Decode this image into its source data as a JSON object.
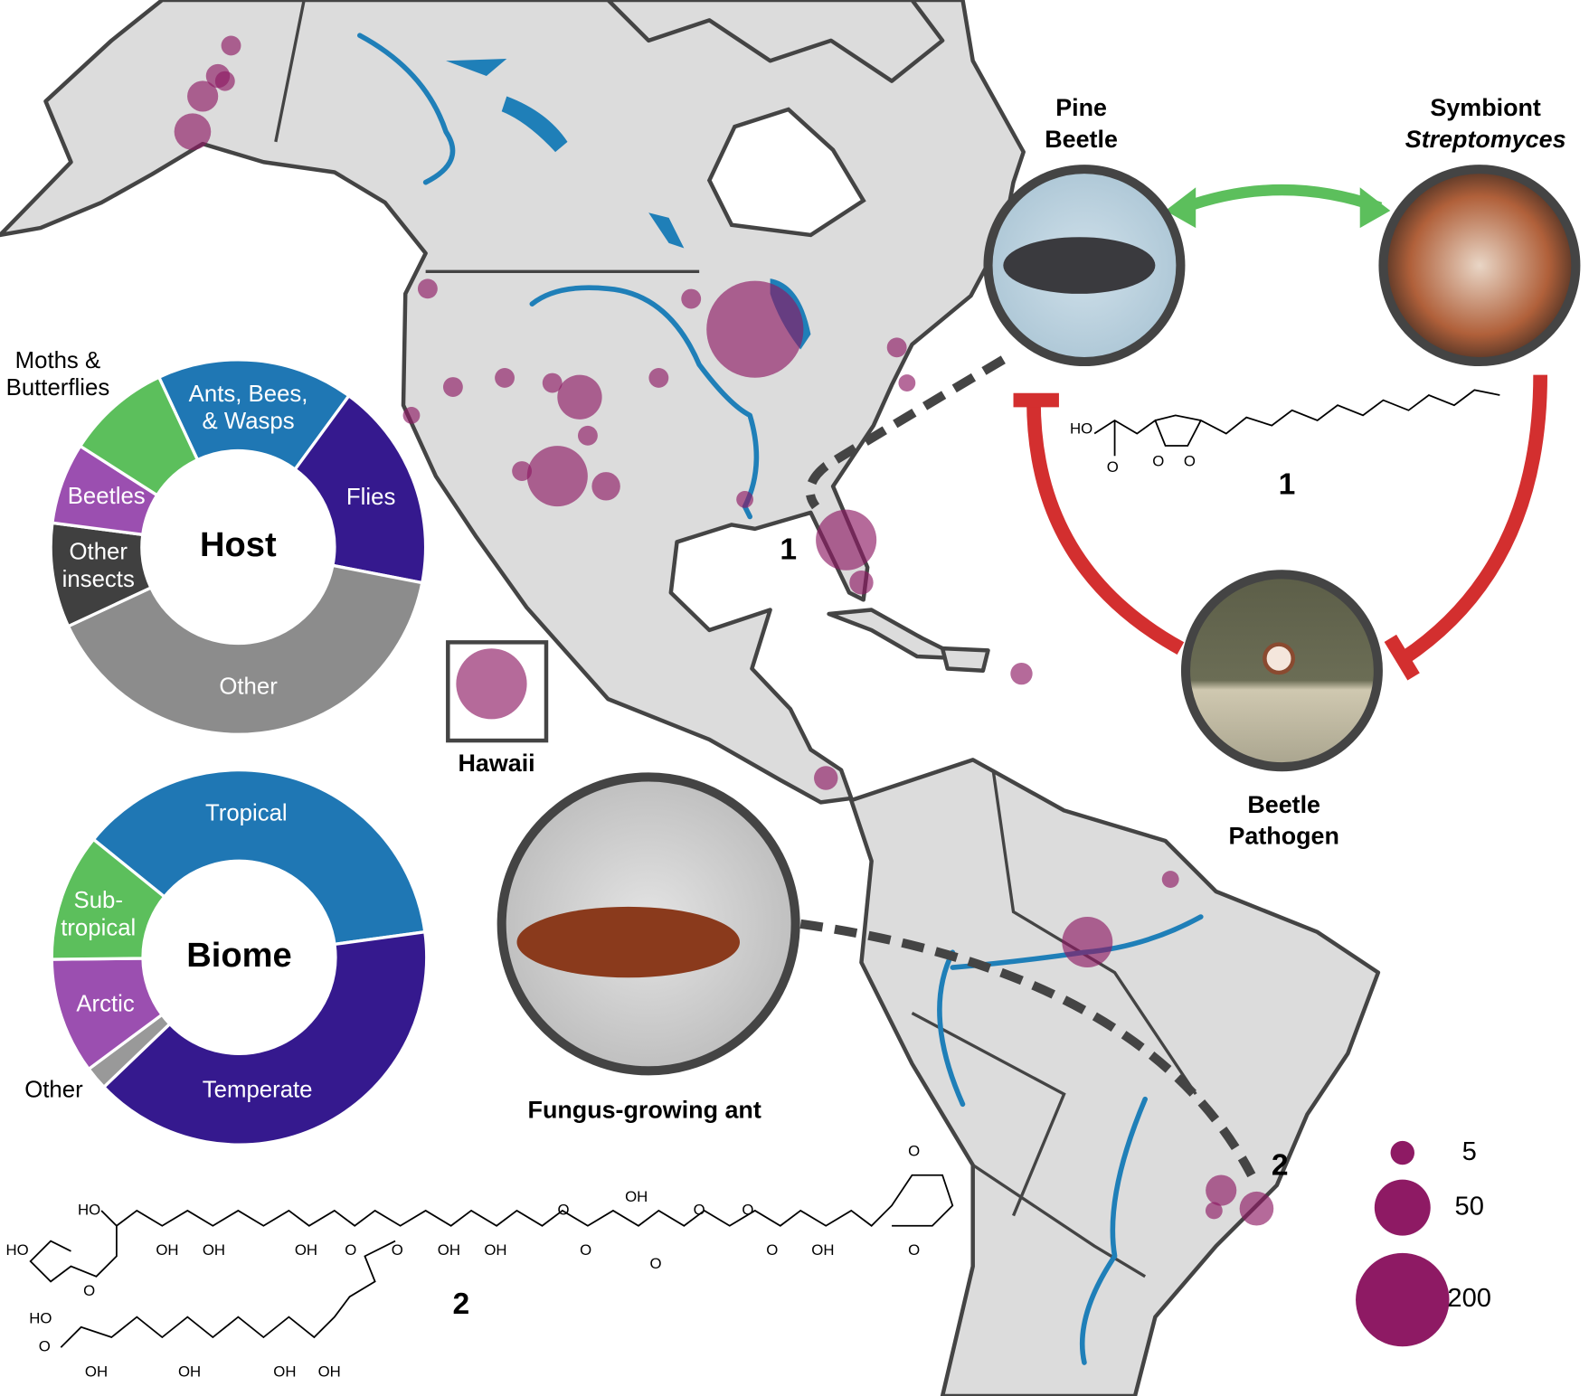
{
  "chart_data": [
    {
      "type": "donut",
      "center_label": "Host",
      "categories": [
        [
          "Ants, Bees,",
          "& Wasps"
        ],
        [
          "Flies"
        ],
        [
          "Other"
        ],
        [
          "Other",
          "insects"
        ],
        [
          "Beetles"
        ],
        [
          "Moths &",
          "Butterflies"
        ]
      ],
      "values": [
        17,
        18,
        40,
        9,
        7,
        9
      ],
      "colors": [
        "#1f77b4",
        "#35198e",
        "#8c8c8c",
        "#404040",
        "#9b4fb0",
        "#5cbf5c"
      ]
    },
    {
      "type": "donut",
      "center_label": "Biome",
      "categories": [
        [
          "Tropical"
        ],
        [
          "Temperate"
        ],
        [
          "Other"
        ],
        [
          "Arctic"
        ],
        [
          "Sub-",
          "tropical"
        ]
      ],
      "values": [
        37,
        40,
        2,
        10,
        11
      ],
      "colors": [
        "#1f77b4",
        "#35198e",
        "#999999",
        "#9b4fb0",
        "#5cbf5c"
      ]
    }
  ],
  "map": {
    "bubble_color": "#8e1a64",
    "bubble_sizes": [
      3,
      5,
      3,
      10,
      16,
      3,
      220,
      3,
      27,
      62,
      3,
      8,
      3,
      3,
      3,
      3,
      3,
      2,
      3,
      2,
      2,
      62,
      5,
      4,
      5,
      94,
      2,
      38,
      10,
      13,
      2
    ],
    "size_legend": [
      5,
      50,
      200
    ]
  },
  "labels": {
    "pine_beetle": [
      "Pine",
      "Beetle"
    ],
    "symbiont": [
      "Symbiont",
      "Streptomyces"
    ],
    "pathogen": [
      "Beetle",
      "Pathogen"
    ],
    "hawaii": "Hawaii",
    "ant": "Fungus-growing ant",
    "compound_1": "1",
    "compound_2": "2"
  },
  "molecule_1_atoms": [
    "HO",
    "O",
    "O",
    "O"
  ],
  "molecule_2_atoms": [
    "HO",
    "HO",
    "O",
    "HO",
    "O",
    "OH",
    "OH",
    "OH",
    "OH",
    "OH",
    "OH",
    "OH",
    "O",
    "O",
    "OH",
    "OH",
    "O",
    "OH",
    "O",
    "O",
    "O",
    "O",
    "O",
    "OH",
    "O",
    "O"
  ]
}
